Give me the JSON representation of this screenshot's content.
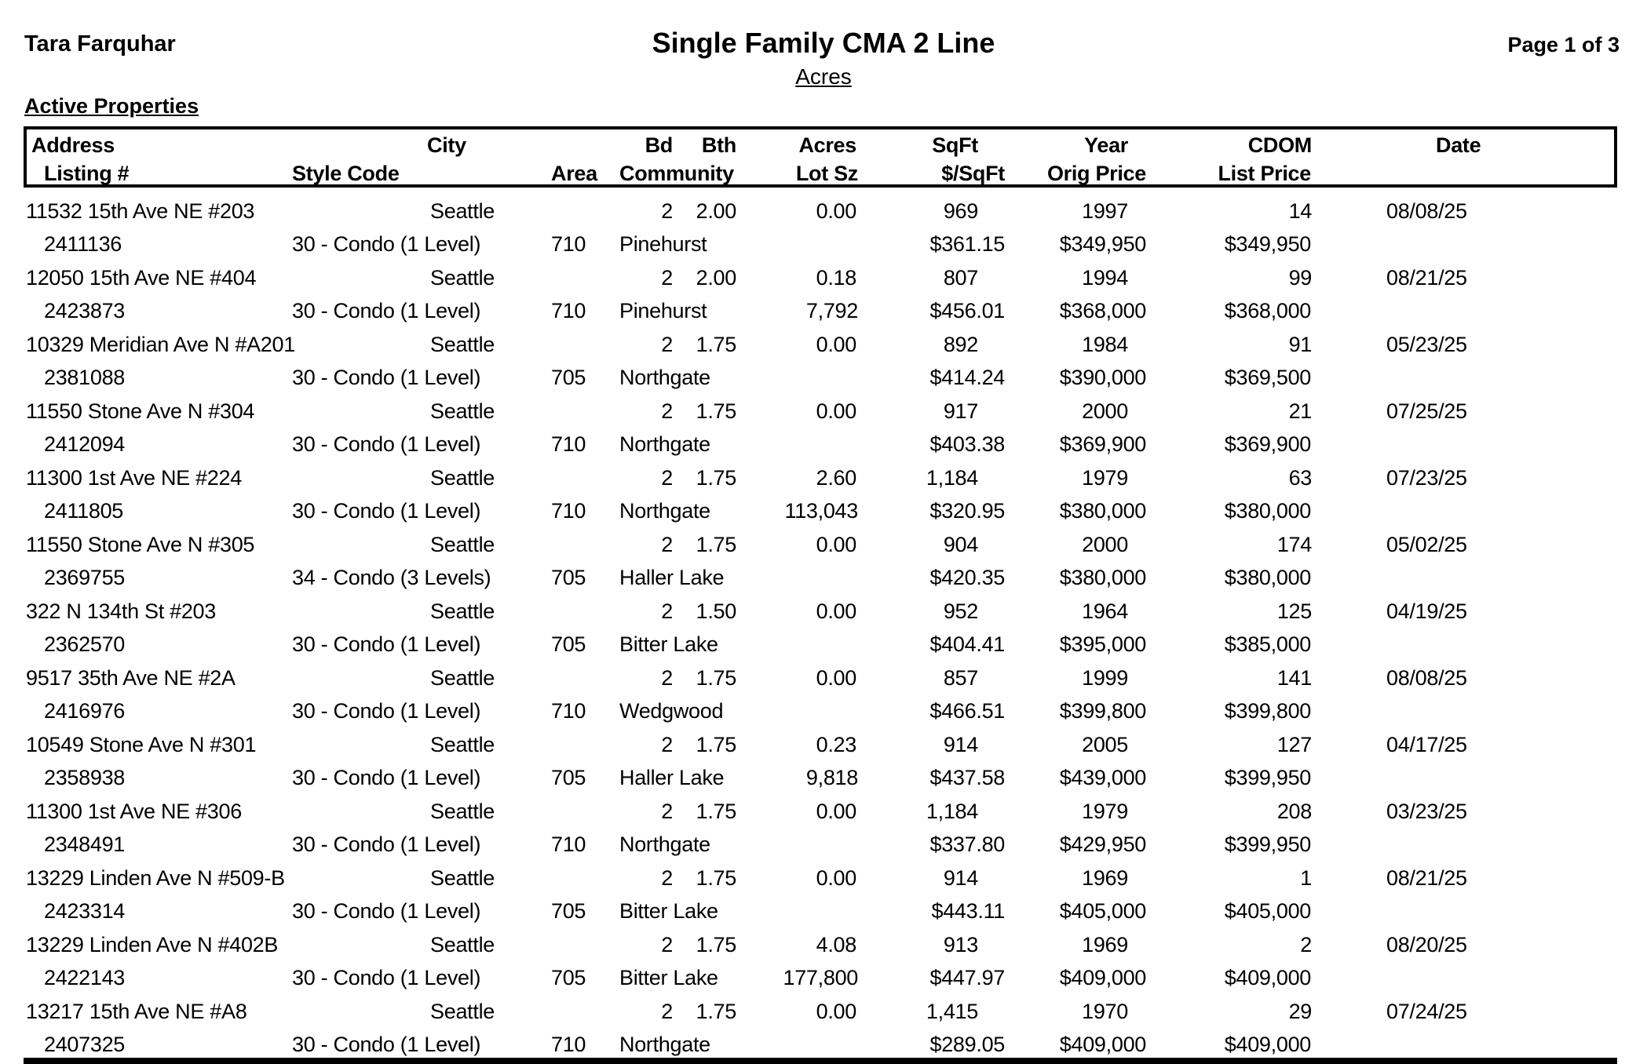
{
  "page": {
    "agent_name": "Tara Farquhar",
    "title": "Single Family CMA 2 Line",
    "subtitle": "Acres",
    "page_indicator": "Page 1 of 3",
    "section_label": "Active Properties"
  },
  "table": {
    "header_line1": {
      "address": "Address",
      "city": "City",
      "bd": "Bd",
      "bth": "Bth",
      "acres": "Acres",
      "sqft": "SqFt",
      "year": "Year",
      "cdom": "CDOM",
      "date": "Date"
    },
    "header_line2": {
      "listing": "Listing #",
      "style": "Style Code",
      "area": "Area",
      "community": "Community",
      "lot_sz": "Lot Sz",
      "price_sqft": "$/SqFt",
      "orig_price": "Orig Price",
      "list_price": "List Price"
    },
    "rows": [
      {
        "address": "11532 15th Ave NE #203",
        "city": "Seattle",
        "bd": "2",
        "bth": "2.00",
        "acres": "0.00",
        "sqft": "969",
        "year": "1997",
        "cdom": "14",
        "date": "08/08/25",
        "listing": "2411136",
        "style": "30 - Condo (1 Level)",
        "area": "710",
        "community": "Pinehurst",
        "lot_sz": "",
        "price_sqft": "$361.15",
        "orig_price": "$349,950",
        "list_price": "$349,950"
      },
      {
        "address": "12050 15th Ave NE #404",
        "city": "Seattle",
        "bd": "2",
        "bth": "2.00",
        "acres": "0.18",
        "sqft": "807",
        "year": "1994",
        "cdom": "99",
        "date": "08/21/25",
        "listing": "2423873",
        "style": "30 - Condo (1 Level)",
        "area": "710",
        "community": "Pinehurst",
        "lot_sz": "7,792",
        "price_sqft": "$456.01",
        "orig_price": "$368,000",
        "list_price": "$368,000"
      },
      {
        "address": "10329 Meridian Ave N #A201",
        "city": "Seattle",
        "bd": "2",
        "bth": "1.75",
        "acres": "0.00",
        "sqft": "892",
        "year": "1984",
        "cdom": "91",
        "date": "05/23/25",
        "listing": "2381088",
        "style": "30 - Condo (1 Level)",
        "area": "705",
        "community": "Northgate",
        "lot_sz": "",
        "price_sqft": "$414.24",
        "orig_price": "$390,000",
        "list_price": "$369,500"
      },
      {
        "address": "11550 Stone Ave N #304",
        "city": "Seattle",
        "bd": "2",
        "bth": "1.75",
        "acres": "0.00",
        "sqft": "917",
        "year": "2000",
        "cdom": "21",
        "date": "07/25/25",
        "listing": "2412094",
        "style": "30 - Condo (1 Level)",
        "area": "710",
        "community": "Northgate",
        "lot_sz": "",
        "price_sqft": "$403.38",
        "orig_price": "$369,900",
        "list_price": "$369,900"
      },
      {
        "address": "11300 1st Ave NE #224",
        "city": "Seattle",
        "bd": "2",
        "bth": "1.75",
        "acres": "2.60",
        "sqft": "1,184",
        "year": "1979",
        "cdom": "63",
        "date": "07/23/25",
        "listing": "2411805",
        "style": "30 - Condo (1 Level)",
        "area": "710",
        "community": "Northgate",
        "lot_sz": "113,043",
        "price_sqft": "$320.95",
        "orig_price": "$380,000",
        "list_price": "$380,000"
      },
      {
        "address": "11550 Stone Ave N #305",
        "city": "Seattle",
        "bd": "2",
        "bth": "1.75",
        "acres": "0.00",
        "sqft": "904",
        "year": "2000",
        "cdom": "174",
        "date": "05/02/25",
        "listing": "2369755",
        "style": "34 - Condo (3 Levels)",
        "area": "705",
        "community": "Haller Lake",
        "lot_sz": "",
        "price_sqft": "$420.35",
        "orig_price": "$380,000",
        "list_price": "$380,000"
      },
      {
        "address": "322 N 134th St #203",
        "city": "Seattle",
        "bd": "2",
        "bth": "1.50",
        "acres": "0.00",
        "sqft": "952",
        "year": "1964",
        "cdom": "125",
        "date": "04/19/25",
        "listing": "2362570",
        "style": "30 - Condo (1 Level)",
        "area": "705",
        "community": "Bitter Lake",
        "lot_sz": "",
        "price_sqft": "$404.41",
        "orig_price": "$395,000",
        "list_price": "$385,000"
      },
      {
        "address": "9517 35th Ave NE #2A",
        "city": "Seattle",
        "bd": "2",
        "bth": "1.75",
        "acres": "0.00",
        "sqft": "857",
        "year": "1999",
        "cdom": "141",
        "date": "08/08/25",
        "listing": "2416976",
        "style": "30 - Condo (1 Level)",
        "area": "710",
        "community": "Wedgwood",
        "lot_sz": "",
        "price_sqft": "$466.51",
        "orig_price": "$399,800",
        "list_price": "$399,800"
      },
      {
        "address": "10549 Stone Ave N #301",
        "city": "Seattle",
        "bd": "2",
        "bth": "1.75",
        "acres": "0.23",
        "sqft": "914",
        "year": "2005",
        "cdom": "127",
        "date": "04/17/25",
        "listing": "2358938",
        "style": "30 - Condo (1 Level)",
        "area": "705",
        "community": "Haller Lake",
        "lot_sz": "9,818",
        "price_sqft": "$437.58",
        "orig_price": "$439,000",
        "list_price": "$399,950"
      },
      {
        "address": "11300 1st Ave NE #306",
        "city": "Seattle",
        "bd": "2",
        "bth": "1.75",
        "acres": "0.00",
        "sqft": "1,184",
        "year": "1979",
        "cdom": "208",
        "date": "03/23/25",
        "listing": "2348491",
        "style": "30 - Condo (1 Level)",
        "area": "710",
        "community": "Northgate",
        "lot_sz": "",
        "price_sqft": "$337.80",
        "orig_price": "$429,950",
        "list_price": "$399,950"
      },
      {
        "address": "13229 Linden Ave N #509-B",
        "city": "Seattle",
        "bd": "2",
        "bth": "1.75",
        "acres": "0.00",
        "sqft": "914",
        "year": "1969",
        "cdom": "1",
        "date": "08/21/25",
        "listing": "2423314",
        "style": "30 - Condo (1 Level)",
        "area": "705",
        "community": "Bitter Lake",
        "lot_sz": "",
        "price_sqft": "$443.11",
        "orig_price": "$405,000",
        "list_price": "$405,000"
      },
      {
        "address": "13229 Linden Ave N #402B",
        "city": "Seattle",
        "bd": "2",
        "bth": "1.75",
        "acres": "4.08",
        "sqft": "913",
        "year": "1969",
        "cdom": "2",
        "date": "08/20/25",
        "listing": "2422143",
        "style": "30 - Condo (1 Level)",
        "area": "705",
        "community": "Bitter Lake",
        "lot_sz": "177,800",
        "price_sqft": "$447.97",
        "orig_price": "$409,000",
        "list_price": "$409,000"
      },
      {
        "address": "13217 15th Ave NE #A8",
        "city": "Seattle",
        "bd": "2",
        "bth": "1.75",
        "acres": "0.00",
        "sqft": "1,415",
        "year": "1970",
        "cdom": "29",
        "date": "07/24/25",
        "listing": "2407325",
        "style": "30 - Condo (1 Level)",
        "area": "710",
        "community": "Northgate",
        "lot_sz": "",
        "price_sqft": "$289.05",
        "orig_price": "$409,000",
        "list_price": "$409,000"
      }
    ]
  }
}
